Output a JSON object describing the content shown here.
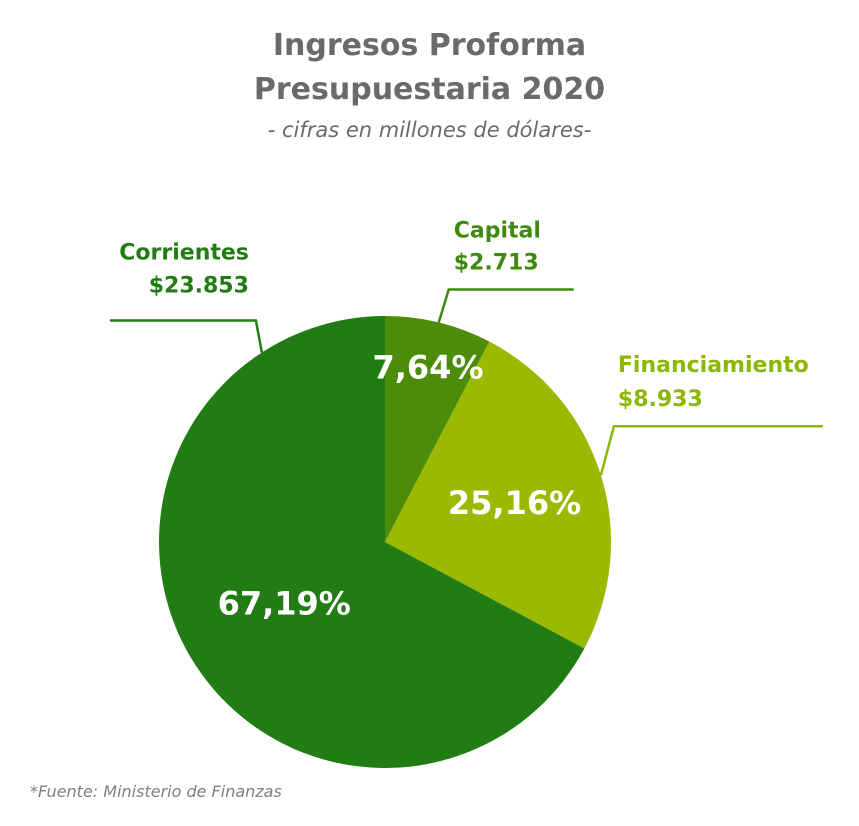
{
  "chart_data": {
    "type": "pie",
    "title_line1": "Ingresos Proforma",
    "title_line2": "Presupuestaria 2020",
    "subtitle": "- cifras en millones de dólares-",
    "source": "*Fuente: Ministerio de Finanzas",
    "slices": [
      {
        "name": "Capital",
        "value_label": "$2.713",
        "value": 2713,
        "percent": 7.64,
        "percent_label": "7,64%",
        "color": "#4d8c0a",
        "label_color": "#3f8a0e"
      },
      {
        "name": "Financiamiento",
        "value_label": "$8.933",
        "value": 8933,
        "percent": 25.16,
        "percent_label": "25,16%",
        "color": "#99ba00",
        "label_color": "#8db600"
      },
      {
        "name": "Corrientes",
        "value_label": "$23.853",
        "value": 23853,
        "percent": 67.19,
        "percent_label": "67,19%",
        "color": "#227c14",
        "label_color": "#227c14"
      }
    ]
  }
}
